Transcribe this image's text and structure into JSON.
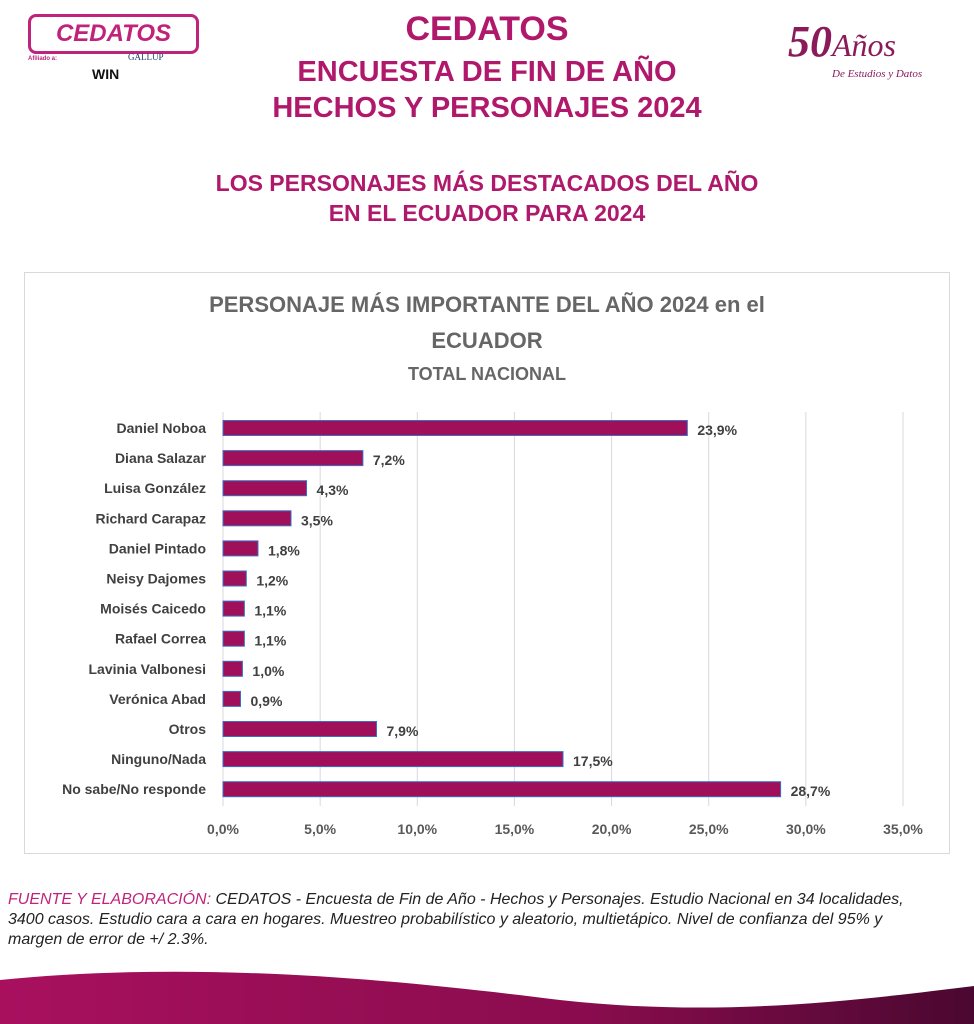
{
  "header": {
    "logo": "CEDATOS",
    "affiliated": "Afiliado a:",
    "gallup": "GALLUP",
    "win": "WIN",
    "title": "CEDATOS",
    "subtitle1": "ENCUESTA DE FIN DE AÑO",
    "subtitle2": "HECHOS Y PERSONAJES 2024",
    "years_number": "50",
    "years_word": "Años",
    "years_tag": "De Estudios y Datos"
  },
  "section": {
    "line1": "LOS PERSONAJES MÁS DESTACADOS DEL AÑO",
    "line2": "EN EL ECUADOR PARA 2024"
  },
  "chart_data": {
    "type": "bar",
    "orientation": "horizontal",
    "title_line1": "PERSONAJE MÁS IMPORTANTE DEL AÑO 2024 en el",
    "title_line2": "ECUADOR",
    "subtitle": "TOTAL NACIONAL",
    "categories": [
      "Daniel Noboa",
      "Diana Salazar",
      "Luisa González",
      "Richard Carapaz",
      "Daniel Pintado",
      "Neisy Dajomes",
      "Moisés Caicedo",
      "Rafael Correa",
      "Lavinia Valbonesi",
      "Verónica Abad",
      "Otros",
      "Ninguno/Nada",
      "No sabe/No responde"
    ],
    "values": [
      23.9,
      7.2,
      4.3,
      3.5,
      1.8,
      1.2,
      1.1,
      1.1,
      1.0,
      0.9,
      7.9,
      17.5,
      28.7
    ],
    "value_labels": [
      "23,9%",
      "7,2%",
      "4,3%",
      "3,5%",
      "1,8%",
      "1,2%",
      "1,1%",
      "1,1%",
      "1,0%",
      "0,9%",
      "7,9%",
      "17,5%",
      "28,7%"
    ],
    "xlim": [
      0,
      35
    ],
    "xticks": [
      "0,0%",
      "5,0%",
      "10,0%",
      "15,0%",
      "20,0%",
      "25,0%",
      "30,0%",
      "35,0%"
    ],
    "grid": true,
    "bar_color": "#a0105a"
  },
  "footer": {
    "heading": "FUENTE Y ELABORACIÓN:",
    "text": " CEDATOS - Encuesta de Fin de Año - Hechos y Personajes. Estudio Nacional en 34 localidades, 3400 casos. Estudio cara a cara en hogares. Muestreo probabilístico y aleatorio, multietápico. Nivel de confianza del 95% y margen de error de +/ 2.3%."
  }
}
